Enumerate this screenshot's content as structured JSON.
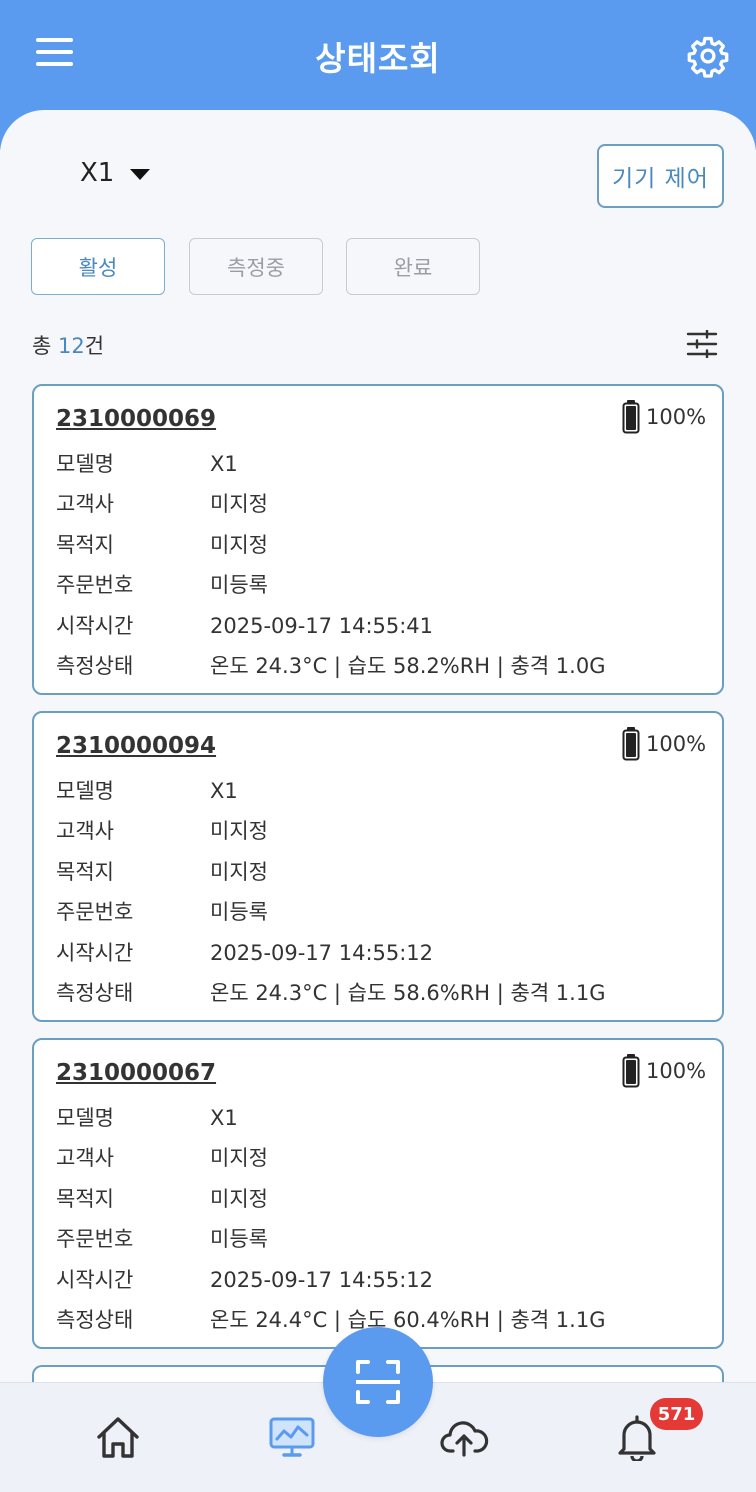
{
  "header": {
    "title": "상태조회"
  },
  "toolbar": {
    "device": "X1",
    "control_label": "기기 제어"
  },
  "filters": [
    {
      "label": "활성",
      "active": true
    },
    {
      "label": "측정중",
      "active": false
    },
    {
      "label": "완료",
      "active": false
    }
  ],
  "summary": {
    "prefix": "총 ",
    "count": "12",
    "suffix": "건"
  },
  "labels": {
    "model": "모델명",
    "customer": "고객사",
    "destination": "목적지",
    "order": "주문번호",
    "start": "시작시간",
    "status": "측정상태"
  },
  "devices": [
    {
      "serial": "2310000069",
      "battery": "100%",
      "model": "X1",
      "customer": "미지정",
      "destination": "미지정",
      "order": "미등록",
      "start": "2025-09-17 14:55:41",
      "status": "온도 24.3°C | 습도 58.2%RH | 충격 1.0G"
    },
    {
      "serial": "2310000094",
      "battery": "100%",
      "model": "X1",
      "customer": "미지정",
      "destination": "미지정",
      "order": "미등록",
      "start": "2025-09-17 14:55:12",
      "status": "온도 24.3°C | 습도 58.6%RH | 충격 1.1G"
    },
    {
      "serial": "2310000067",
      "battery": "100%",
      "model": "X1",
      "customer": "미지정",
      "destination": "미지정",
      "order": "미등록",
      "start": "2025-09-17 14:55:12",
      "status": "온도 24.4°C | 습도 60.4%RH | 충격 1.1G"
    }
  ],
  "nav": {
    "items": [
      "home-icon",
      "monitor-icon",
      "upload-icon",
      "bell-icon"
    ],
    "notification_badge": "571"
  },
  "colors": {
    "primary": "#5b9bef",
    "accent_text": "#4a88c0",
    "card_border": "#6a9ec2",
    "badge": "#e53935"
  }
}
